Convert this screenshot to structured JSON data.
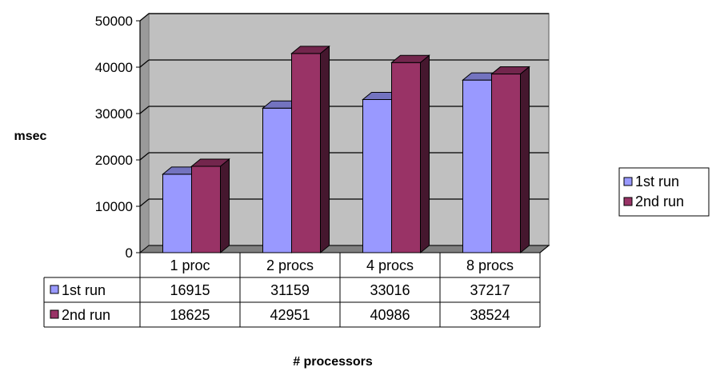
{
  "chart_data": {
    "type": "bar",
    "title": "",
    "xlabel": "# processors",
    "ylabel": "msec",
    "ylim": [
      0,
      50000
    ],
    "yticks": [
      "0",
      "10000",
      "20000",
      "30000",
      "40000",
      "50000"
    ],
    "categories": [
      "1 proc",
      "2 procs",
      "4 procs",
      "8 procs"
    ],
    "series": [
      {
        "name": "1st run",
        "values": [
          16915,
          31159,
          33016,
          37217
        ],
        "color": "#9999ff"
      },
      {
        "name": "2nd run",
        "values": [
          18625,
          42951,
          40986,
          38524
        ],
        "color": "#993366"
      }
    ],
    "grid": true,
    "plot_background": "#c0c0c0",
    "legend": "right",
    "data_table": true,
    "style": "3d-clustered-column"
  }
}
